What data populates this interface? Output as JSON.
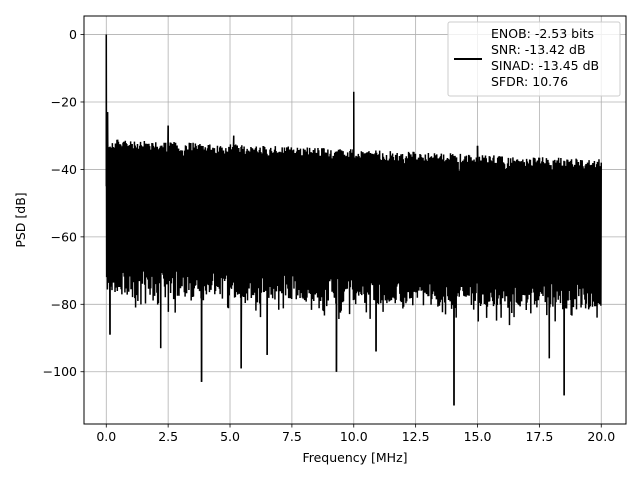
{
  "chart_data": {
    "type": "line",
    "title": "",
    "xlabel": "Frequency [MHz]",
    "ylabel": "PSD [dB]",
    "xlim": [
      -0.9,
      21.0
    ],
    "ylim": [
      -115.5,
      5.5
    ],
    "grid": true,
    "legend_position": "top-right",
    "x_ticks": [
      0.0,
      2.5,
      5.0,
      7.5,
      10.0,
      12.5,
      15.0,
      17.5,
      20.0
    ],
    "x_tick_labels": [
      "0.0",
      "2.5",
      "5.0",
      "7.5",
      "10.0",
      "12.5",
      "15.0",
      "17.5",
      "20.0"
    ],
    "y_ticks": [
      0,
      -20,
      -40,
      -60,
      -80,
      -100
    ],
    "y_tick_labels": [
      "0",
      "−20",
      "−40",
      "−60",
      "−80",
      "−100"
    ],
    "legend": {
      "line_color": "#000000",
      "lines": [
        "ENOB: -2.53 bits",
        "SNR: -13.42 dB",
        "SINAD: -13.45 dB",
        "SFDR: 10.76"
      ]
    },
    "series": [
      {
        "color": "#000000",
        "noise_top_start": -31,
        "noise_top_end": -37,
        "noise_bottom_start": -77,
        "noise_bottom_end": -82,
        "peaks": [
          {
            "x": 0.0,
            "y": 0
          },
          {
            "x": 0.05,
            "y": -23
          },
          {
            "x": 2.5,
            "y": -27
          },
          {
            "x": 5.15,
            "y": -30
          },
          {
            "x": 10.0,
            "y": -17
          },
          {
            "x": 15.0,
            "y": -33
          }
        ],
        "dips": [
          {
            "x": 0.15,
            "y": -89
          },
          {
            "x": 2.2,
            "y": -93
          },
          {
            "x": 3.85,
            "y": -103
          },
          {
            "x": 5.45,
            "y": -99
          },
          {
            "x": 6.5,
            "y": -95
          },
          {
            "x": 9.3,
            "y": -100
          },
          {
            "x": 10.9,
            "y": -94
          },
          {
            "x": 14.05,
            "y": -110
          },
          {
            "x": 17.9,
            "y": -96
          },
          {
            "x": 18.5,
            "y": -107
          }
        ]
      }
    ]
  }
}
